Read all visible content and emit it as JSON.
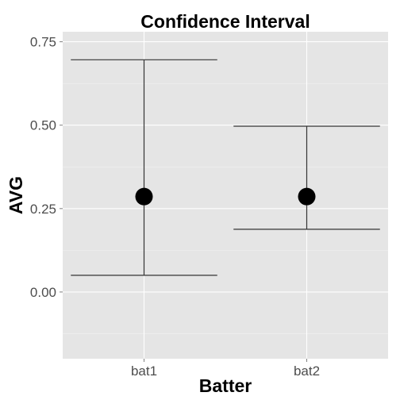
{
  "chart_data": {
    "type": "errorbar",
    "title": "Confidence Interval",
    "xlabel": "Batter",
    "ylabel": "AVG",
    "categories": [
      "bat1",
      "bat2"
    ],
    "values": [
      0.286,
      0.286
    ],
    "lower": [
      0.05,
      0.188
    ],
    "upper": [
      0.696,
      0.497
    ],
    "ylim": [
      -0.2,
      0.78
    ],
    "yticks": [
      0.0,
      0.25,
      0.5,
      0.75
    ],
    "ytick_labels": [
      "0.00",
      "0.25",
      "0.50",
      "0.75"
    ],
    "grid": true,
    "legend": "none",
    "colors": {
      "panel_bg": "#e5e5e5",
      "grid_major": "#ffffff",
      "grid_minor": "#f2f2f2",
      "point": "#000000",
      "errorbar": "#333333"
    }
  }
}
